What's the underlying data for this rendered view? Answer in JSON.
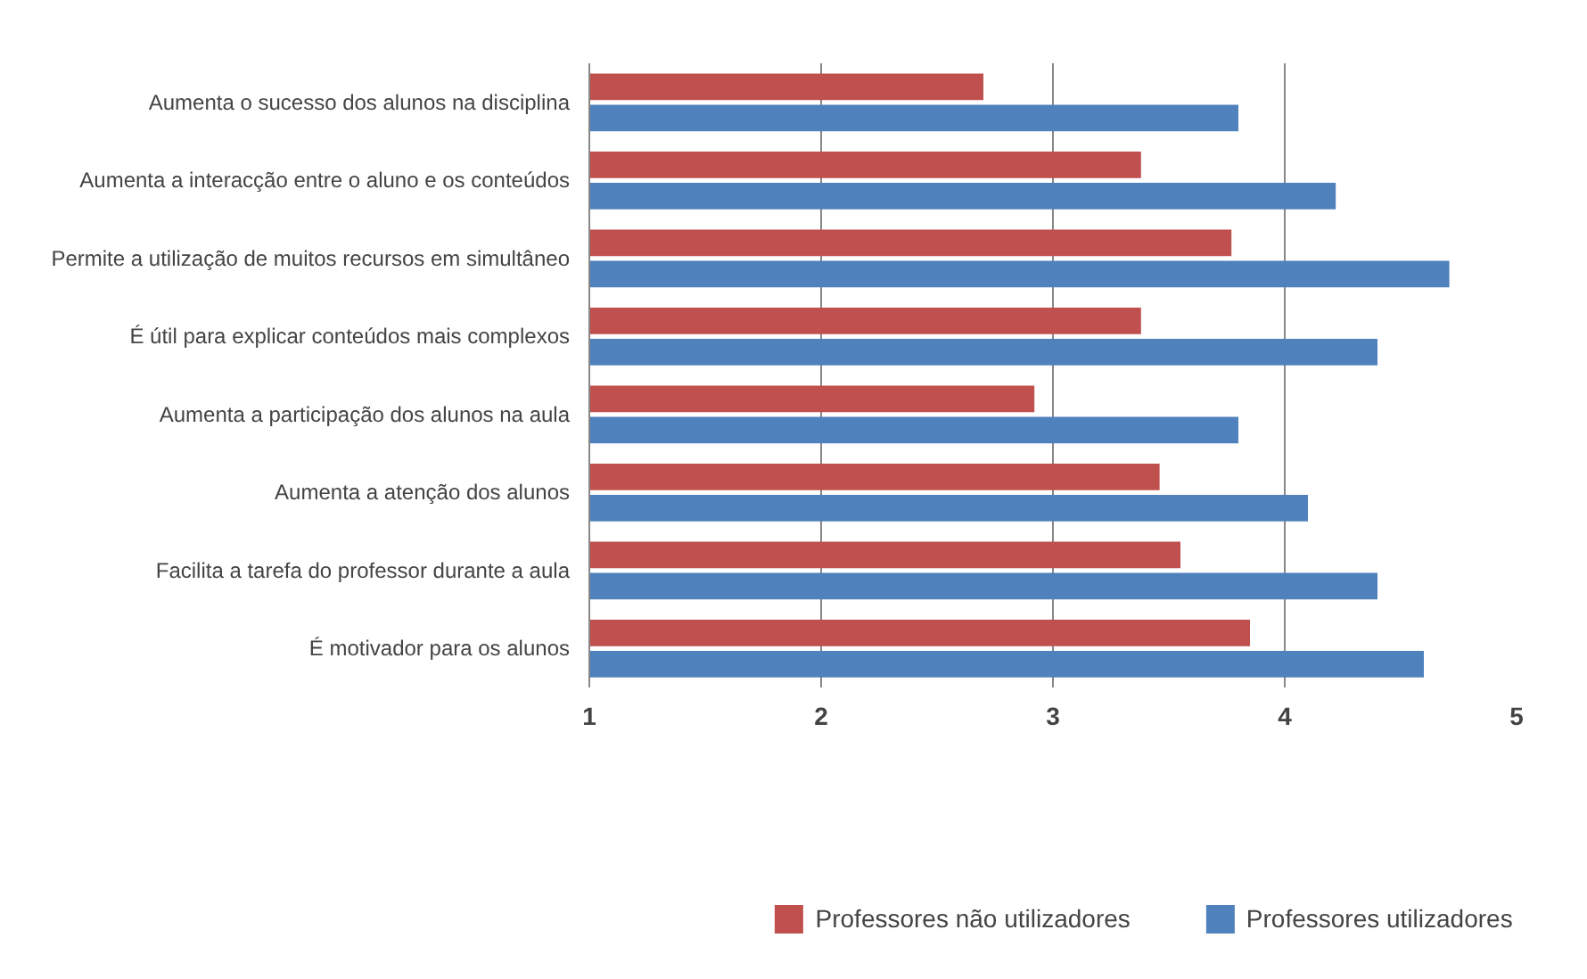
{
  "chart_data": {
    "type": "bar",
    "orientation": "horizontal",
    "categories": [
      "Aumenta o sucesso dos alunos na disciplina",
      "Aumenta a interacção entre o aluno e os conteúdos",
      "Permite a utilização de muitos recursos em simultâneo",
      "É útil para explicar conteúdos mais complexos",
      "Aumenta a participação dos alunos na aula",
      "Aumenta a atenção dos alunos",
      "Facilita a tarefa do professor durante a aula",
      "É motivador para os alunos"
    ],
    "series": [
      {
        "name": "Professores não utilizadores",
        "color": "#c0504d",
        "values": [
          2.7,
          3.38,
          3.77,
          3.38,
          2.92,
          3.46,
          3.55,
          3.85
        ]
      },
      {
        "name": "Professores utilizadores",
        "color": "#4f81bd",
        "values": [
          3.8,
          4.22,
          4.71,
          4.4,
          3.8,
          4.1,
          4.4,
          4.6
        ]
      }
    ],
    "xlim": [
      1,
      5
    ],
    "xticks": [
      1,
      2,
      3,
      4,
      5
    ],
    "grid": "x",
    "legend": "bottom"
  }
}
